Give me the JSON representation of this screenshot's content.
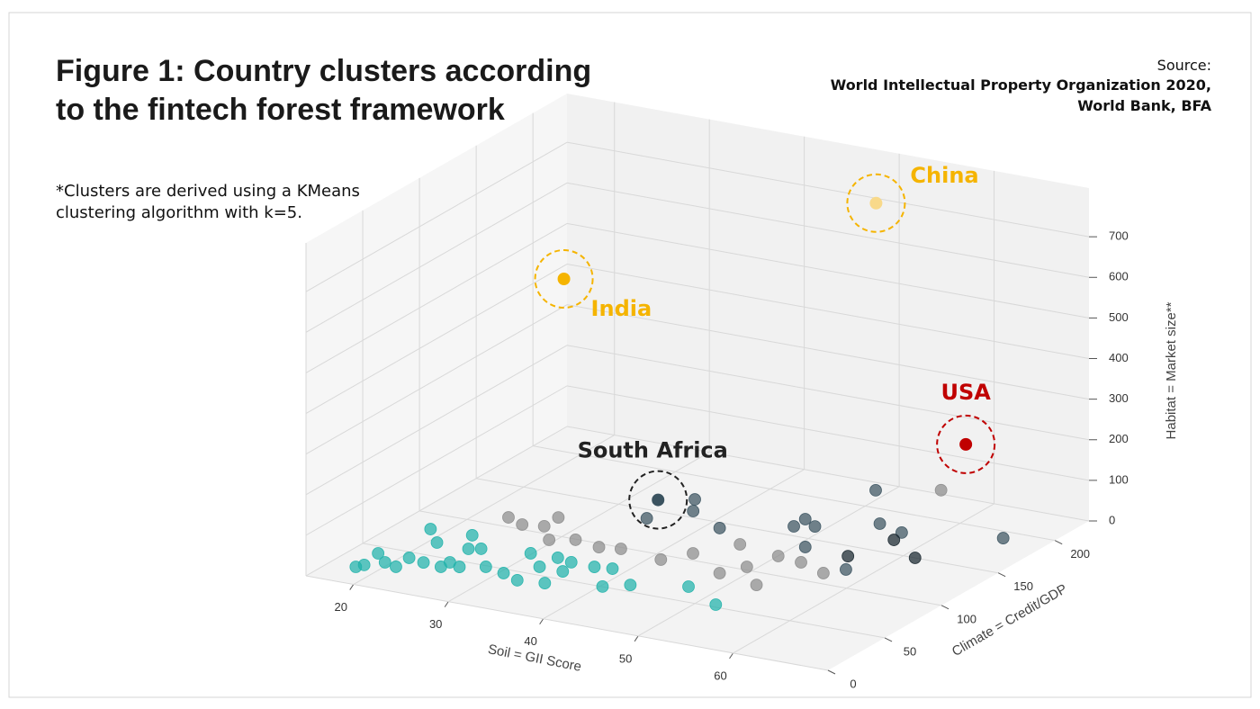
{
  "chart_data": {
    "type": "scatter3d",
    "title": [
      "Figure 1: Country clusters according",
      "to the fintech forest framework"
    ],
    "source": [
      "Source:",
      "World Intellectual Property Organization 2020,",
      "World Bank, BFA"
    ],
    "note": [
      "*Clusters are derived using a KMeans",
      "clustering algorithm with k=5."
    ],
    "xlabel": "Soil = GII Score",
    "ylabel": "Climate = Credit/GDP",
    "zlabel": "Habitat = Market size**",
    "xlim": [
      15,
      70
    ],
    "ylim": [
      0,
      230
    ],
    "zlim": [
      0,
      820
    ],
    "xticks": [
      20,
      30,
      40,
      50,
      60
    ],
    "yticks": [
      0,
      50,
      100,
      150,
      200
    ],
    "zticks": [
      0,
      100,
      200,
      300,
      400,
      500,
      600,
      700
    ],
    "grid": true,
    "series": [
      {
        "color": "#20b2aa",
        "x": [
          18.3,
          18.7,
          18.2,
          20.0,
          21.5,
          21.3,
          19.0,
          21.4,
          25.1,
          25.2,
          24.8,
          23.2,
          25.8,
          28.7,
          31.0,
          33.1,
          30.4,
          33.0,
          35.7,
          33.2,
          34.9,
          37.4,
          40.8,
          39.1,
          42.8,
          47.7,
          52.4,
          35.5,
          26.6,
          23.1
        ],
        "y": [
          16.3,
          20.3,
          36.8,
          27.8,
          24.9,
          38.2,
          76.3,
          61.9,
          34.4,
          41.5,
          61.2,
          77.9,
          64.0,
          43.9,
          40.3,
          34.8,
          69.2,
          55.3,
          37.3,
          69.7,
          67.3,
          66.8,
          45.5,
          68.5,
          53.3,
          63.6,
          48.3,
          54.8,
          38.2,
          35.8
        ],
        "z": [
          10,
          10,
          10,
          10,
          10,
          10,
          10,
          10,
          10,
          10,
          10,
          10,
          10,
          10,
          10,
          10,
          10,
          10,
          10,
          10,
          10,
          10,
          10,
          10,
          10,
          10,
          10,
          10,
          10,
          10
        ]
      },
      {
        "color": "#8c8c8c",
        "x": [
          23.6,
          25.7,
          27.7,
          27.6,
          32.1,
          35.0,
          37.0,
          41.7,
          43.4,
          48.3,
          45.9,
          49.6,
          52.9,
          50.6,
          53.3,
          56.6,
          58.0,
          30.0
        ],
        "y": [
          106.5,
          101.0,
          103.7,
          117.0,
          94.5,
          90.9,
          93.5,
          89.4,
          103.5,
          86.0,
          124.0,
          99.1,
          80.0,
          118.4,
          115.9,
          108.0,
          200.0,
          88.8
        ],
        "z": [
          10,
          10,
          10,
          10,
          10,
          10,
          10,
          10,
          10,
          10,
          10,
          10,
          10,
          10,
          10,
          10,
          73,
          10
        ]
      },
      {
        "color": "#3b5360",
        "x": [
          34.8,
          36.0,
          37.5,
          42.0,
          47.7,
          47.6,
          49.4,
          51.5,
          49.2,
          54.2,
          57.2,
          66.1,
          57.9
        ],
        "y": [
          134.7,
          167.0,
          153.0,
          138.7,
          156.4,
          167.3,
          160.8,
          134.7,
          216.0,
          177.8,
          172.0,
          187.0,
          117.0
        ],
        "z": [
          10,
          10,
          10,
          10,
          10,
          10,
          10,
          10,
          10,
          10,
          10,
          10,
          10
        ]
      },
      {
        "color": "#18262e",
        "x": [
          57.6,
          61.8,
          56.2
        ],
        "y": [
          161.8,
          145.3,
          133.0
        ],
        "z": [
          10,
          10,
          10
        ]
      }
    ],
    "annotations": [
      {
        "text": "India",
        "color": "#f5b400",
        "point_color": "#f5b400",
        "x": 35,
        "y": 60,
        "z": 720
      },
      {
        "text": "China",
        "color": "#f5b400",
        "point_color": "#f8d98a",
        "x": 54.5,
        "y": 172,
        "z": 810
      },
      {
        "text": "USA",
        "color": "#c00000",
        "point_color": "#c00000",
        "x": 63,
        "y": 180,
        "z": 239
      },
      {
        "text": "South Africa",
        "color": "#222222",
        "point_color": "#3b5360",
        "x": 35,
        "y": 143,
        "z": 43
      }
    ]
  }
}
